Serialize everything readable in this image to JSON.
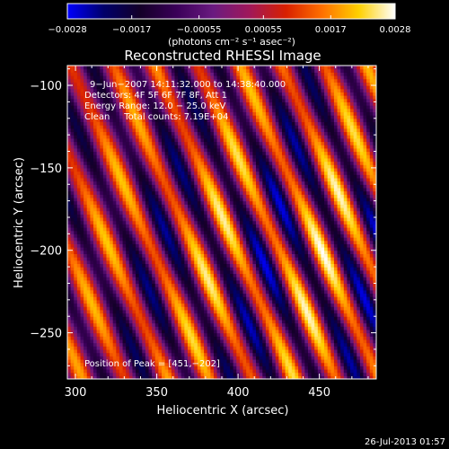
{
  "chart_data": {
    "type": "heatmap",
    "title": "Reconstructed RHESSI Image",
    "xlabel": "Heliocentric X (arcsec)",
    "ylabel": "Heliocentric Y (arcsec)",
    "xlim": [
      295,
      485
    ],
    "ylim": [
      -278,
      -88
    ],
    "x_ticks": [
      300,
      350,
      400,
      450
    ],
    "y_ticks": [
      -100,
      -150,
      -200,
      -250
    ],
    "x_tick_labels": [
      "300",
      "350",
      "400",
      "450"
    ],
    "y_tick_labels": [
      "−100",
      "−150",
      "−200",
      "−250"
    ],
    "colorbar": {
      "min": -0.0028,
      "max": 0.0028,
      "tick_labels": [
        "−0.0028",
        "−0.0017",
        "−0.00055",
        "0.00055",
        "0.0017",
        "0.0028"
      ],
      "units": "(photons cm⁻² s⁻¹ asec⁻²)",
      "colormap": [
        "#0000ff",
        "#00006a",
        "#140028",
        "#3a0058",
        "#6a1a80",
        "#a0185a",
        "#d82000",
        "#ff7000",
        "#ffd000",
        "#ffffff"
      ]
    },
    "annotations": {
      "time": "9−Jun−2007 14:11:32.000 to 14:38:40.000",
      "detectors": "Detectors: 4F 5F 6F 7F 8F, Att 1",
      "energy": "Energy Range: 12.0 − 25.0 keV",
      "method": "Clean     Total counts: 7.19E+04",
      "peak": "Position of Peak = [451,−202]"
    },
    "peak": {
      "x": 451,
      "y": -202
    },
    "stripe_pattern": {
      "description_free": true,
      "slope_dx_per_dy": 0.45,
      "period_arcsec": 26
    }
  },
  "footer": {
    "date": "26-Jul-2013 01:57"
  }
}
